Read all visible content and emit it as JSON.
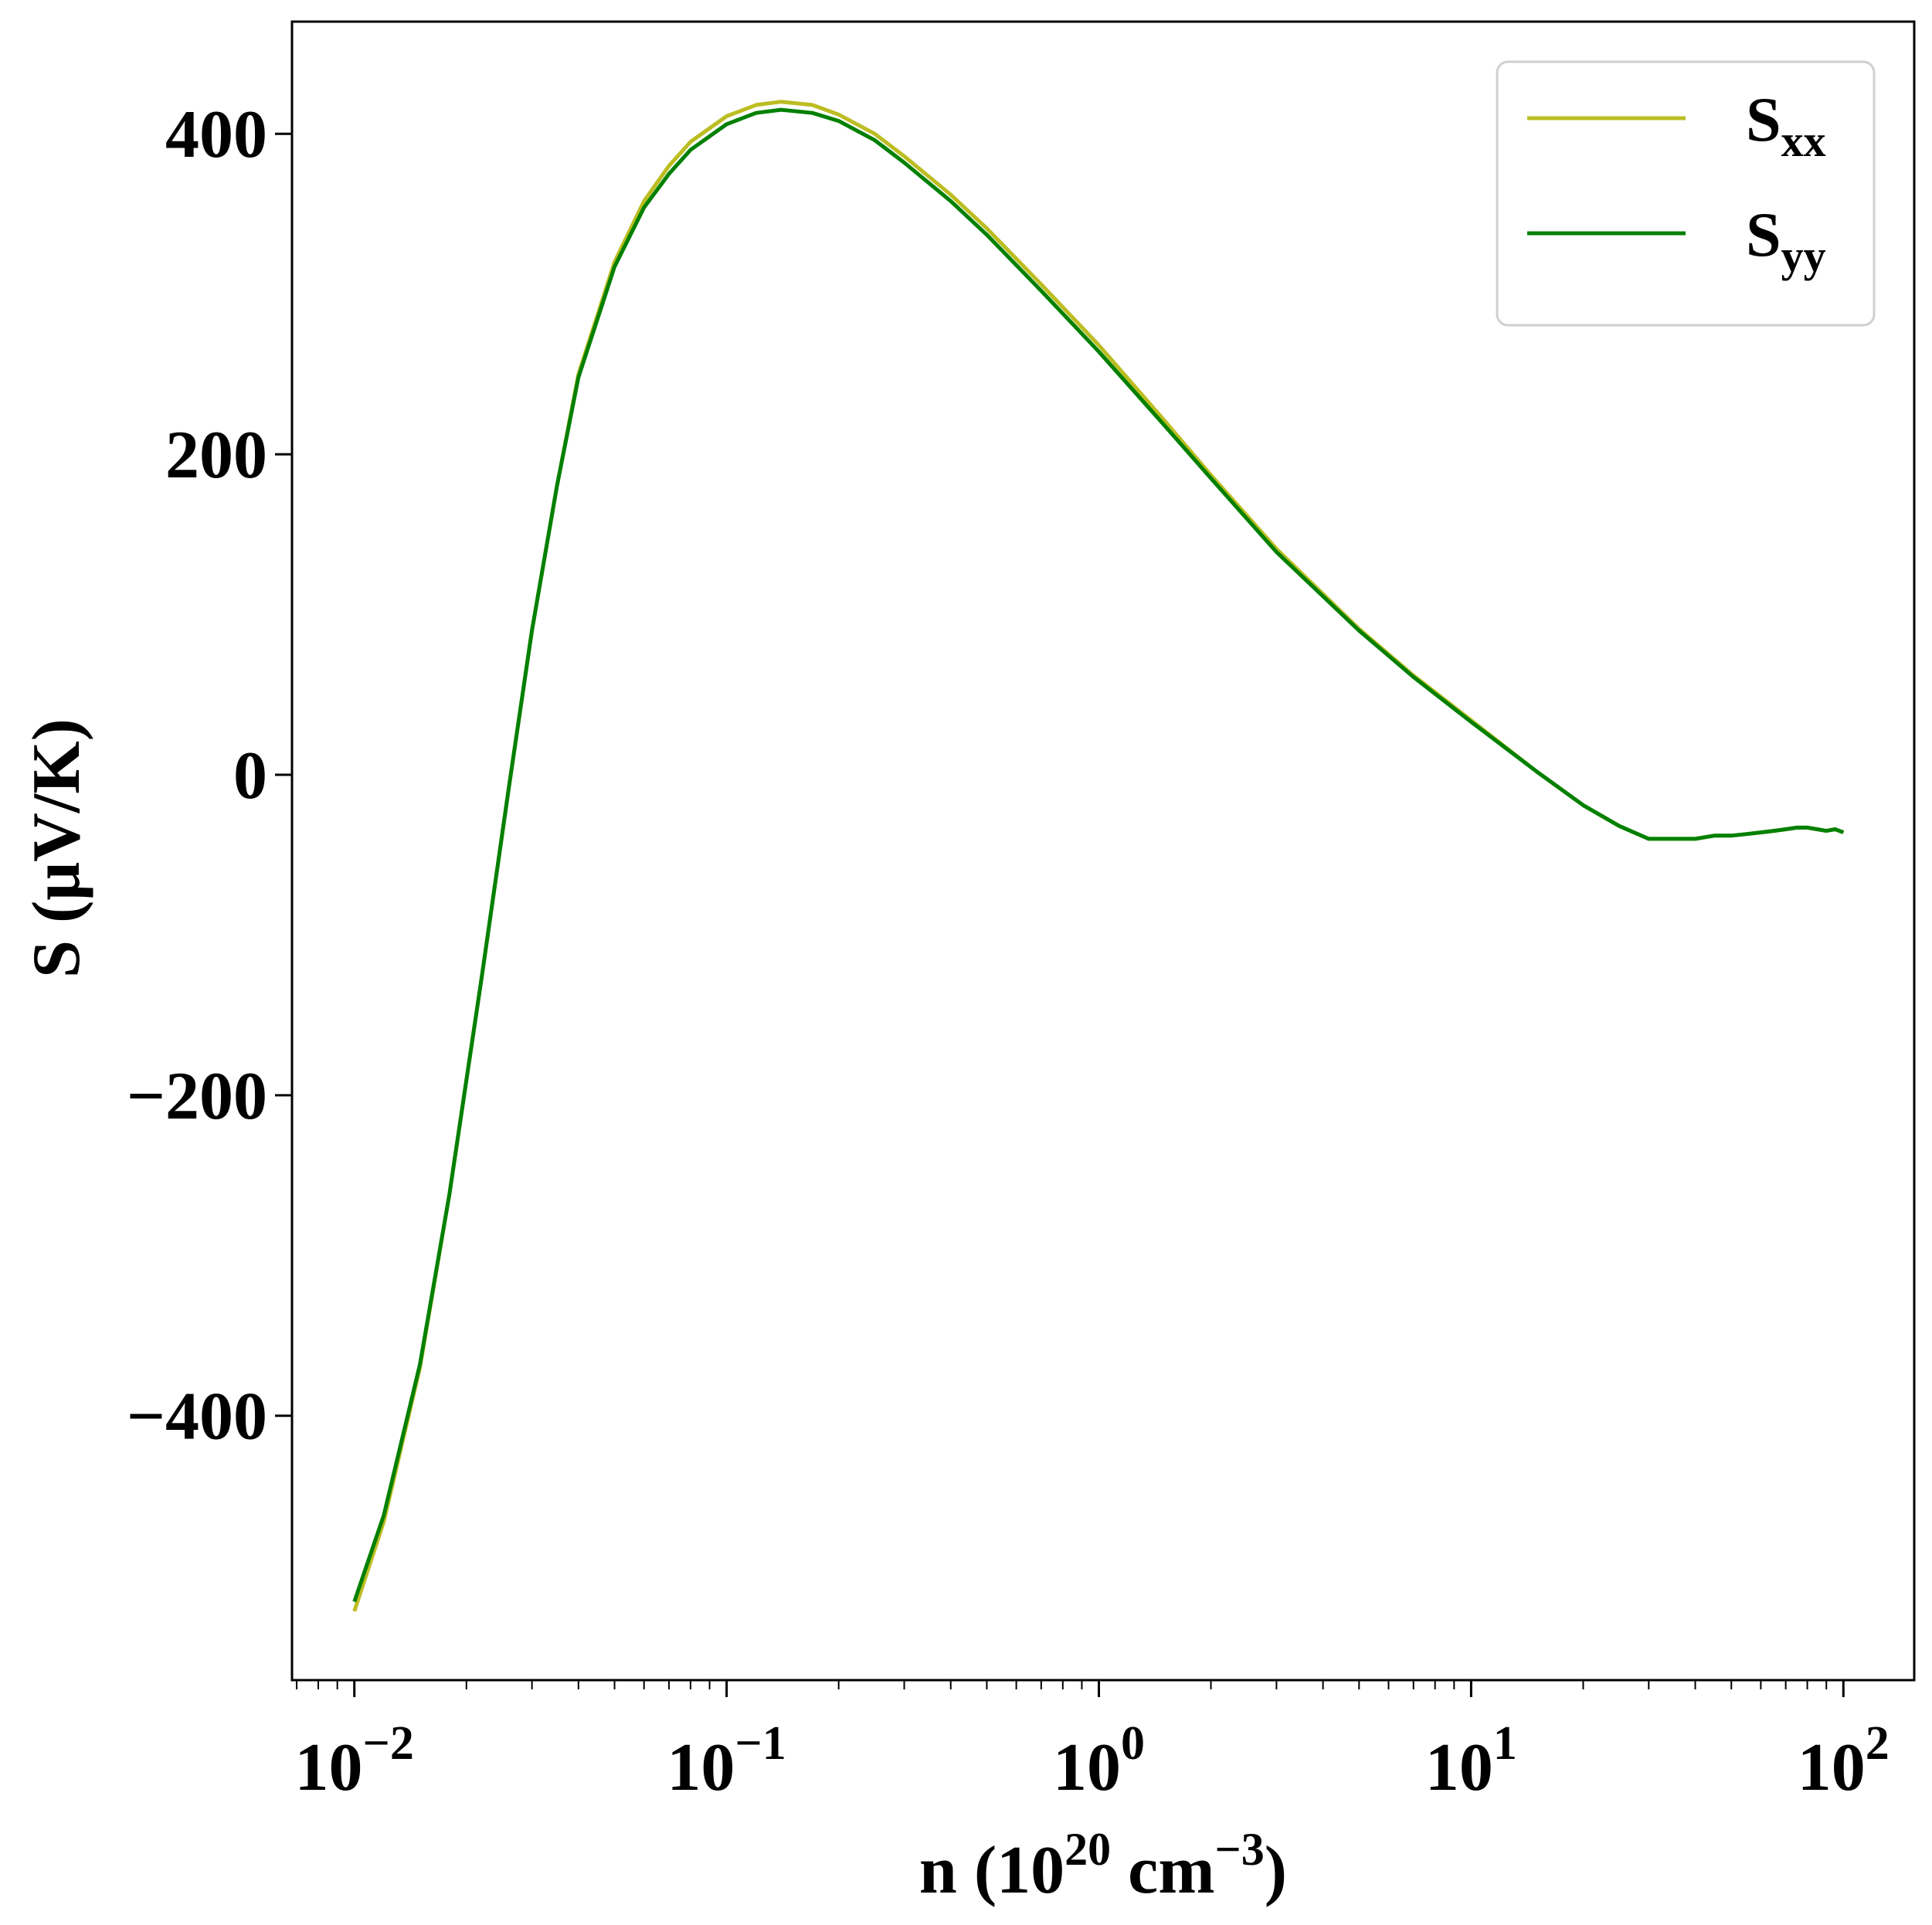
{
  "chart_data": {
    "type": "line",
    "xlabel": {
      "prefix": "n (10",
      "exp": "20",
      "unit": " cm",
      "unit_exp": "−3",
      "suffix": ")"
    },
    "ylabel": "S (μV/K)",
    "x_scale": "log",
    "xlim": [
      0.0068,
      155
    ],
    "ylim": [
      -565,
      470
    ],
    "x_ticks": [
      {
        "value": 0.01,
        "base": "10",
        "exp": "−2"
      },
      {
        "value": 0.1,
        "base": "10",
        "exp": "−1"
      },
      {
        "value": 1,
        "base": "10",
        "exp": "0"
      },
      {
        "value": 10,
        "base": "10",
        "exp": "1"
      },
      {
        "value": 100,
        "base": "10",
        "exp": "2"
      }
    ],
    "y_ticks": [
      {
        "value": 400,
        "label": "400"
      },
      {
        "value": 200,
        "label": "200"
      },
      {
        "value": 0,
        "label": "0"
      },
      {
        "value": -200,
        "label": "−200"
      },
      {
        "value": -400,
        "label": "−400"
      }
    ],
    "grid": false,
    "legend_position": "top-right",
    "series": [
      {
        "name": "S",
        "sub": "xx",
        "color": "#bcbd22",
        "x": [
          0.01,
          0.012,
          0.015,
          0.018,
          0.022,
          0.026,
          0.03,
          0.035,
          0.04,
          0.05,
          0.06,
          0.07,
          0.08,
          0.1,
          0.12,
          0.14,
          0.17,
          0.2,
          0.25,
          0.3,
          0.4,
          0.5,
          0.7,
          1,
          1.5,
          2,
          3,
          5,
          7,
          10,
          15,
          20,
          25,
          30,
          35,
          40,
          45,
          50,
          55,
          60,
          65,
          70,
          75,
          80,
          85,
          90,
          95,
          100
        ],
        "y": [
          -522,
          -466,
          -370,
          -262,
          -126,
          -8,
          90,
          180,
          250,
          320,
          358,
          380,
          395,
          411,
          418,
          420,
          418,
          412,
          400,
          386,
          362,
          341,
          306,
          268,
          221,
          187,
          141,
          91,
          62,
          34,
          2,
          -19,
          -32,
          -40,
          -40,
          -40,
          -38,
          -38,
          -37,
          -36,
          -35,
          -34,
          -33,
          -33,
          -34,
          -35,
          -34,
          -36
        ]
      },
      {
        "name": "S",
        "sub": "yy",
        "color": "#008000",
        "x": [
          0.01,
          0.012,
          0.015,
          0.018,
          0.022,
          0.026,
          0.03,
          0.035,
          0.04,
          0.05,
          0.06,
          0.07,
          0.08,
          0.1,
          0.12,
          0.14,
          0.17,
          0.2,
          0.25,
          0.3,
          0.4,
          0.5,
          0.7,
          1,
          1.5,
          2,
          3,
          5,
          7,
          10,
          15,
          20,
          25,
          30,
          35,
          40,
          45,
          50,
          55,
          60,
          65,
          70,
          75,
          80,
          85,
          90,
          95,
          100
        ],
        "y": [
          -516,
          -462,
          -368,
          -262,
          -126,
          -8,
          90,
          180,
          248,
          317,
          354,
          375,
          390,
          406,
          413,
          415,
          413,
          408,
          396,
          382,
          358,
          337,
          302,
          264,
          218,
          185,
          139,
          90,
          61,
          33,
          2,
          -19,
          -32,
          -40,
          -40,
          -40,
          -38,
          -38,
          -37,
          -36,
          -35,
          -34,
          -33,
          -33,
          -34,
          -35,
          -34,
          -36
        ]
      }
    ]
  }
}
